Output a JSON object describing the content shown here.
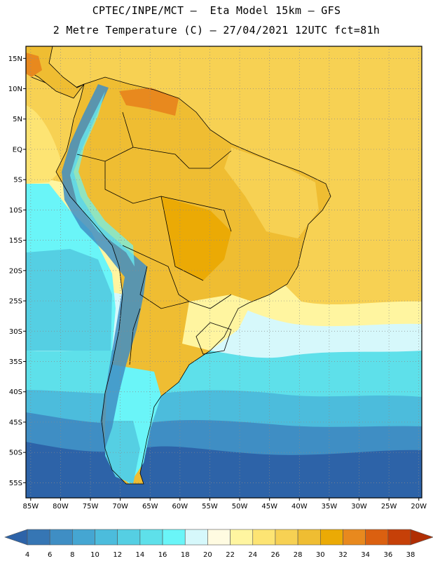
{
  "header": {
    "line1": "CPTEC/INPE/MCT –  Eta Model 15km – GFS",
    "line2": "2 Metre Temperature (C) – 27/04/2021 12UTC fct=81h"
  },
  "axes": {
    "lat_labels": [
      "15N",
      "10N",
      "5N",
      "EQ",
      "5S",
      "10S",
      "15S",
      "20S",
      "25S",
      "30S",
      "35S",
      "40S",
      "45S",
      "50S",
      "55S"
    ],
    "lat_values": [
      15,
      10,
      5,
      0,
      -5,
      -10,
      -15,
      -20,
      -25,
      -30,
      -35,
      -40,
      -45,
      -50,
      -55
    ],
    "lon_labels": [
      "85W",
      "80W",
      "75W",
      "70W",
      "65W",
      "60W",
      "55W",
      "50W",
      "45W",
      "40W",
      "35W",
      "30W",
      "25W",
      "20W"
    ],
    "lon_values": [
      -85,
      -80,
      -75,
      -70,
      -65,
      -60,
      -55,
      -50,
      -45,
      -40,
      -35,
      -30,
      -25,
      -20
    ],
    "lat_range": [
      -57.5,
      17
    ],
    "lon_range": [
      -85.8,
      -19.5
    ],
    "grid": "dotted"
  },
  "colorbar": {
    "labels": [
      "4",
      "6",
      "8",
      "10",
      "12",
      "14",
      "16",
      "18",
      "20",
      "22",
      "24",
      "26",
      "28",
      "30",
      "32",
      "34",
      "36",
      "38"
    ],
    "colors": [
      "#2d63a8",
      "#3676b4",
      "#3f8ec4",
      "#45a6d2",
      "#4cbcdc",
      "#55cfe3",
      "#5ee0ea",
      "#6af5f8",
      "#d6f8fb",
      "#fffbe1",
      "#fff5a0",
      "#fde473",
      "#f7d153",
      "#efbd32",
      "#ebaa05",
      "#e8891e",
      "#db6010",
      "#c64008",
      "#b02e04"
    ]
  },
  "regions": [
    {
      "name": "ocean-south-band-1",
      "color": "#2d63a8"
    },
    {
      "name": "ocean-south-band-2",
      "color": "#3f8ec4"
    },
    {
      "name": "ocean-south-band-3",
      "color": "#4cbcdc"
    },
    {
      "name": "ocean-south-band-4",
      "color": "#5ee0ea"
    },
    {
      "name": "ocean-mid-band",
      "color": "#d6f8fb"
    },
    {
      "name": "ocean-warm-band",
      "color": "#fff5a0"
    },
    {
      "name": "ocean-tropical",
      "color": "#f7d153"
    },
    {
      "name": "land-interior",
      "color": "#efbd32"
    },
    {
      "name": "land-hot",
      "color": "#e8891e"
    },
    {
      "name": "andes-cold",
      "color": "#3f8ec4"
    }
  ]
}
